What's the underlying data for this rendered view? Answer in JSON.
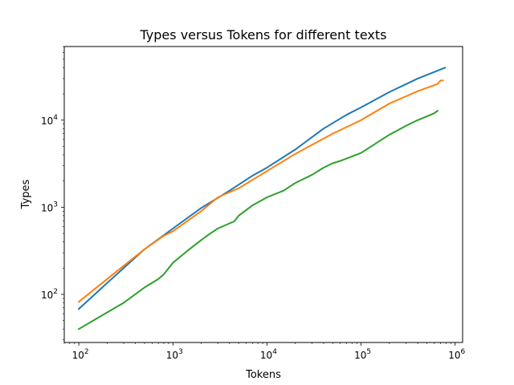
{
  "chart_data": {
    "type": "line",
    "title": "Types versus Tokens for different texts",
    "xlabel": "Tokens",
    "ylabel": "Types",
    "x_scale": "log",
    "y_scale": "log",
    "xlim": [
      70,
      1200000
    ],
    "ylim": [
      28,
      70000
    ],
    "grid": false,
    "legend": "none",
    "x_ticks": [
      {
        "value": 100,
        "base": "10",
        "exp": "2"
      },
      {
        "value": 1000,
        "base": "10",
        "exp": "3"
      },
      {
        "value": 10000,
        "base": "10",
        "exp": "4"
      },
      {
        "value": 100000,
        "base": "10",
        "exp": "5"
      },
      {
        "value": 1000000,
        "base": "10",
        "exp": "6"
      }
    ],
    "y_ticks": [
      {
        "value": 100,
        "base": "10",
        "exp": "2"
      },
      {
        "value": 1000,
        "base": "10",
        "exp": "3"
      },
      {
        "value": 10000,
        "base": "10",
        "exp": "4"
      }
    ],
    "series": [
      {
        "color": "#1f77b4",
        "x": [
          100,
          200,
          500,
          1000,
          2000,
          4000,
          7000,
          10000,
          20000,
          40000,
          70000,
          100000,
          200000,
          400000,
          780000
        ],
        "y": [
          68,
          135,
          330,
          570,
          980,
          1550,
          2300,
          2850,
          4600,
          8000,
          11500,
          14000,
          21000,
          30000,
          40000
        ]
      },
      {
        "color": "#ff7f0e",
        "x": [
          100,
          200,
          500,
          800,
          1000,
          2000,
          3000,
          5000,
          10000,
          20000,
          50000,
          100000,
          200000,
          400000,
          650000,
          700000,
          740000
        ],
        "y": [
          82,
          150,
          330,
          470,
          530,
          900,
          1300,
          1650,
          2600,
          4100,
          7000,
          10000,
          15500,
          21500,
          26000,
          28500,
          28500
        ]
      },
      {
        "color": "#2ca02c",
        "x": [
          100,
          200,
          300,
          500,
          700,
          800,
          1000,
          1500,
          2000,
          2500,
          3000,
          4500,
          5000,
          7000,
          10000,
          15000,
          20000,
          30000,
          40000,
          50000,
          60000,
          100000,
          200000,
          300000,
          400000,
          600000,
          650000
        ],
        "y": [
          40,
          62,
          80,
          120,
          150,
          170,
          230,
          330,
          420,
          500,
          570,
          690,
          800,
          1050,
          1300,
          1550,
          1900,
          2350,
          2850,
          3200,
          3400,
          4200,
          6800,
          8600,
          10000,
          12000,
          12800
        ]
      }
    ]
  }
}
